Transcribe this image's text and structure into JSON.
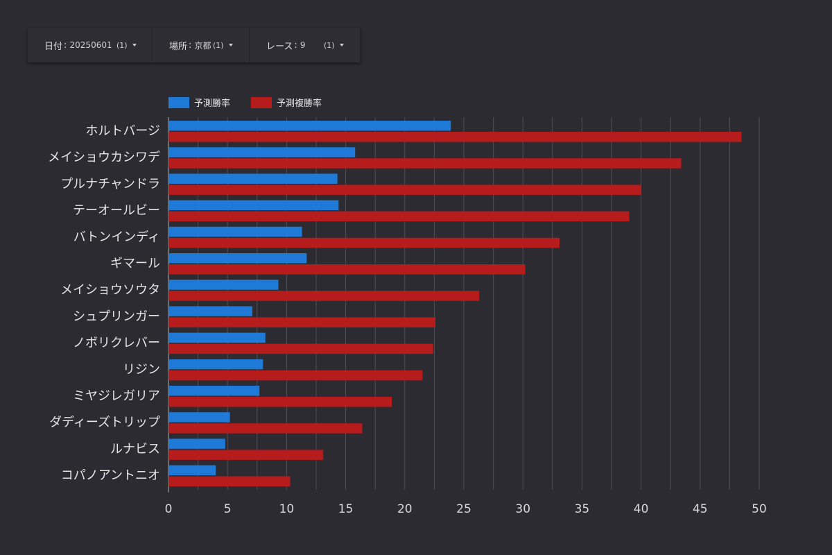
{
  "filters": [
    {
      "label": "日付",
      "value": "20250601",
      "count": "(1)"
    },
    {
      "label": "場所",
      "value": "京都",
      "count": "(1)"
    },
    {
      "label": "レース",
      "value": "9",
      "count": "(1)"
    }
  ],
  "colors": {
    "win": "#1e7ad6",
    "place": "#b71c1c",
    "grid": "#505057",
    "text": "#e6e6e6"
  },
  "chart_data": {
    "type": "bar",
    "orientation": "horizontal",
    "legend_position": "top-left",
    "grid": true,
    "categories": [
      "ホルトバージ",
      "メイショウカシワデ",
      "プルナチャンドラ",
      "テーオールビー",
      "バトンインディ",
      "ギマール",
      "メイショウソウタ",
      "シュプリンガー",
      "ノボリクレバー",
      "リジン",
      "ミヤジレガリア",
      "ダディーズトリップ",
      "ルナビス",
      "コパノアントニオ"
    ],
    "series": [
      {
        "name": "予測勝率",
        "values": [
          23.9,
          15.8,
          14.3,
          14.4,
          11.3,
          11.7,
          9.3,
          7.1,
          8.2,
          8.0,
          7.7,
          5.2,
          4.8,
          4.0
        ]
      },
      {
        "name": "予測複勝率",
        "values": [
          48.5,
          43.4,
          40.0,
          39.0,
          33.1,
          30.2,
          26.3,
          22.6,
          22.4,
          21.5,
          18.9,
          16.4,
          13.1,
          10.3
        ]
      }
    ],
    "xlim": [
      0,
      50
    ],
    "xticks": [
      0,
      5,
      10,
      15,
      20,
      25,
      30,
      35,
      40,
      45,
      50
    ]
  }
}
